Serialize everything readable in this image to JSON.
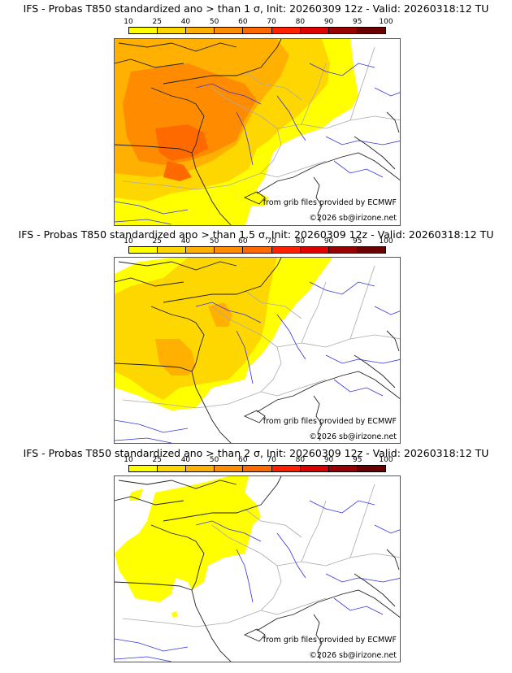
{
  "panels": [
    {
      "title": "IFS - Probas T850  standardized ano > than 1 σ, Init: 20260309 12z - Valid: 20260318:12 TU",
      "max_level": 60
    },
    {
      "title": "IFS - Probas T850  standardized ano > than 1.5 σ, Init: 20260309 12z - Valid: 20260318:12 TU",
      "max_level": 40
    },
    {
      "title": "IFS - Probas T850  standardized ano > than 2 σ, Init: 20260309 12z - Valid: 20260318:12 TU",
      "max_level": 10
    }
  ],
  "colorbar": {
    "ticks": [
      "10",
      "25",
      "40",
      "50",
      "60",
      "70",
      "80",
      "90",
      "95",
      "100"
    ],
    "colors": [
      "#ffff00",
      "#ffd700",
      "#ffb000",
      "#ff8c00",
      "#ff6a00",
      "#ff2000",
      "#dd0000",
      "#990000",
      "#6a0000"
    ]
  },
  "credits": {
    "source": "from grib files provided by ECMWF",
    "copyright": "©2026 sb@irizone.net"
  },
  "map_colors": {
    "coast": "#222222",
    "rivers": "#3333dd",
    "borders": "#aaaaaa"
  }
}
